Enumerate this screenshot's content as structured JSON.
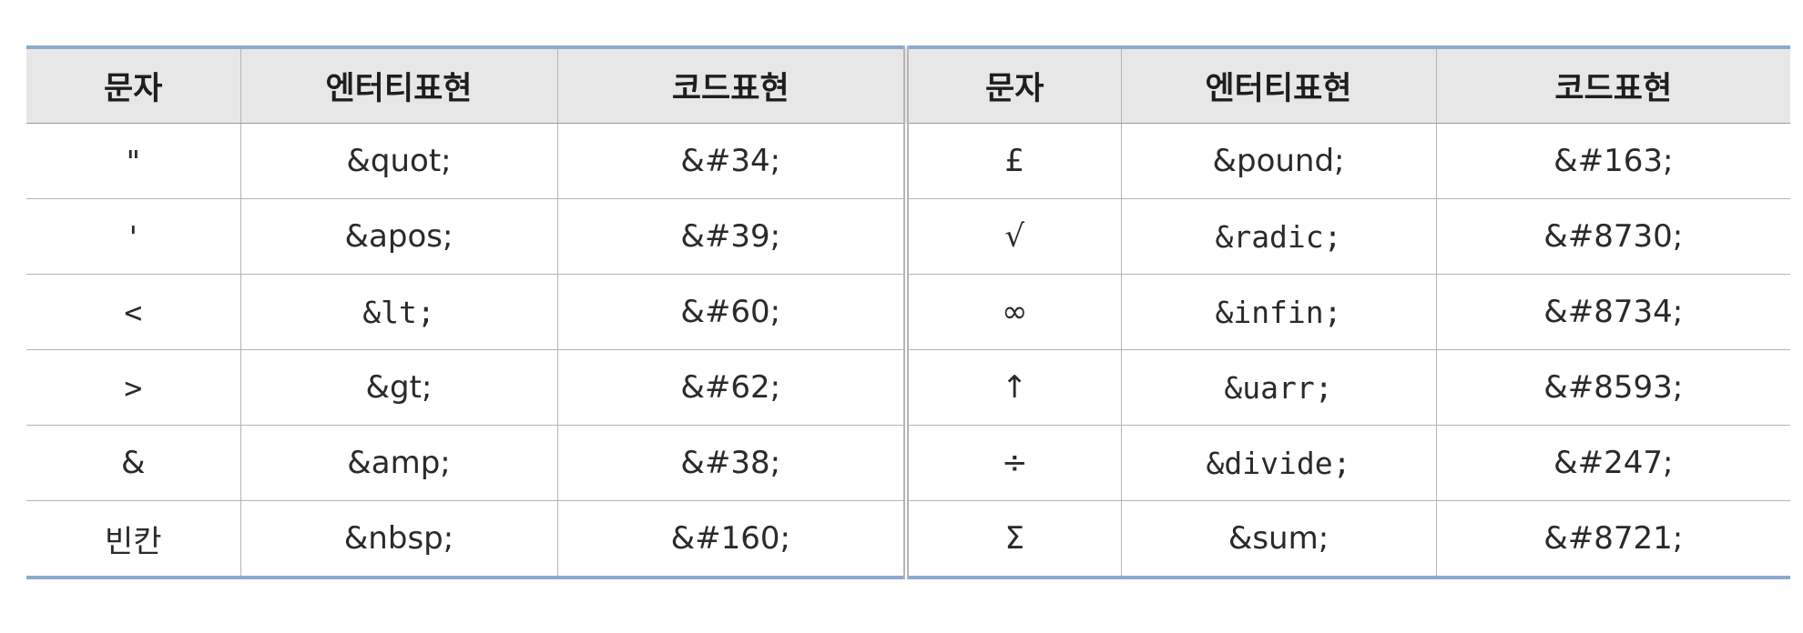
{
  "headers": [
    "문자",
    "엔터티표현",
    "코드표현",
    "문자",
    "엔터티표현",
    "코드표현"
  ],
  "rows": [
    [
      "\"",
      "&quot;",
      "&#34;",
      "£",
      "&pound;",
      "&#163;"
    ],
    [
      "'",
      "&apos;",
      "&#39;",
      "√",
      "&radic;",
      "&#8730;"
    ],
    [
      "<",
      "&lt;",
      "&#60;",
      "∞",
      "&infin;",
      "&#8734;"
    ],
    [
      ">",
      "&gt;",
      "&#62;",
      "↑",
      "&uarr;",
      "&#8593;"
    ],
    [
      "&",
      "&amp;",
      "&#38;",
      "÷",
      "&divide;",
      "&#247;"
    ],
    [
      "빈칸",
      "&nbsp;",
      "&#160;",
      "Σ",
      "&sum;",
      "&#8721;"
    ]
  ],
  "colors": {
    "header_bg": "#e7e7e7",
    "accent_rule": "#8caad0",
    "grid_line": "#b5b5b5"
  }
}
